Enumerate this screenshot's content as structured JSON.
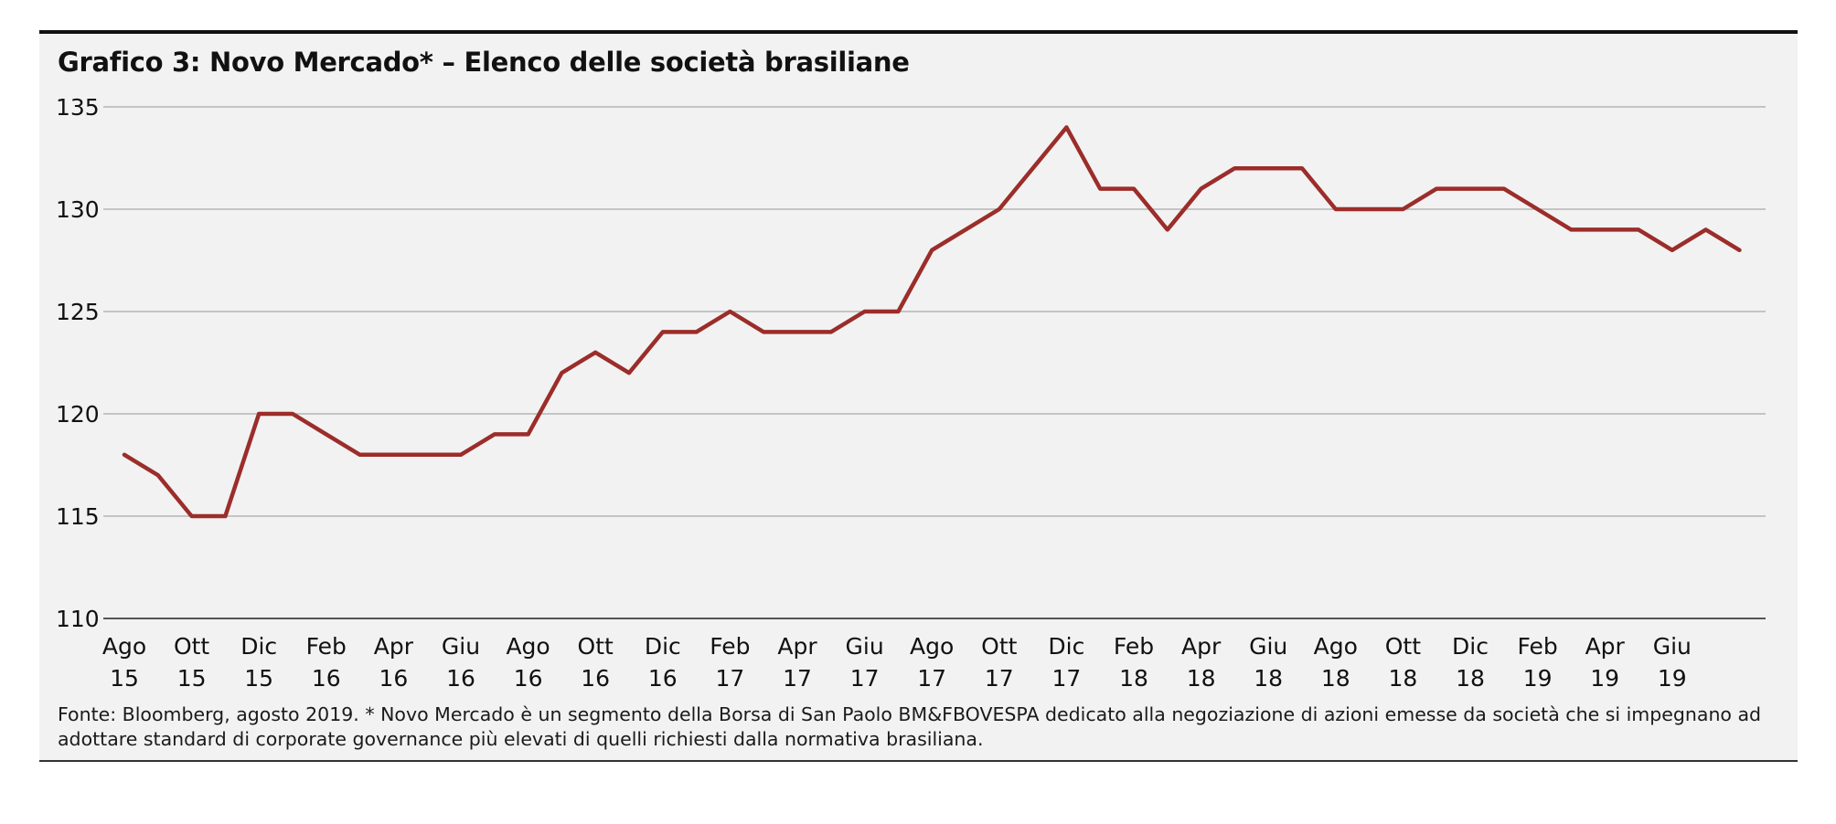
{
  "title": "Grafico 3: Novo Mercado* – Elenco delle società brasiliane",
  "source_lines": [
    "Fonte: Bloomberg, agosto 2019. * Novo Mercado è un segmento della Borsa di San Paolo BM&FBOVESPA dedicato alla negoziazione di azioni emesse da società che si impegnano ad",
    "adottare standard di corporate governance più elevati di quelli richiesti dalla normativa brasiliana."
  ],
  "chart_data": {
    "type": "line",
    "title": "Grafico 3: Novo Mercado* – Elenco delle società brasiliane",
    "xlabel": "",
    "ylabel": "",
    "ylim": [
      110,
      135
    ],
    "yticks": [
      110,
      115,
      120,
      125,
      130,
      135
    ],
    "grid": true,
    "line_color": "#9b2d2a",
    "x_tick_labels": [
      [
        "Ago",
        "15"
      ],
      [
        "Ott",
        "15"
      ],
      [
        "Dic",
        "15"
      ],
      [
        "Feb",
        "16"
      ],
      [
        "Apr",
        "16"
      ],
      [
        "Giu",
        "16"
      ],
      [
        "Ago",
        "16"
      ],
      [
        "Ott",
        "16"
      ],
      [
        "Dic",
        "16"
      ],
      [
        "Feb",
        "17"
      ],
      [
        "Apr",
        "17"
      ],
      [
        "Giu",
        "17"
      ],
      [
        "Ago",
        "17"
      ],
      [
        "Ott",
        "17"
      ],
      [
        "Dic",
        "17"
      ],
      [
        "Feb",
        "18"
      ],
      [
        "Apr",
        "18"
      ],
      [
        "Giu",
        "18"
      ],
      [
        "Ago",
        "18"
      ],
      [
        "Ott",
        "18"
      ],
      [
        "Dic",
        "18"
      ],
      [
        "Feb",
        "19"
      ],
      [
        "Apr",
        "19"
      ],
      [
        "Giu",
        "19"
      ]
    ],
    "x": [
      "2015-08",
      "2015-09",
      "2015-10",
      "2015-11",
      "2015-12",
      "2016-01",
      "2016-02",
      "2016-03",
      "2016-04",
      "2016-05",
      "2016-06",
      "2016-07",
      "2016-08",
      "2016-09",
      "2016-10",
      "2016-11",
      "2016-12",
      "2017-01",
      "2017-02",
      "2017-03",
      "2017-04",
      "2017-05",
      "2017-06",
      "2017-07",
      "2017-08",
      "2017-09",
      "2017-10",
      "2017-11",
      "2017-12",
      "2018-01",
      "2018-02",
      "2018-03",
      "2018-04",
      "2018-05",
      "2018-06",
      "2018-07",
      "2018-08",
      "2018-09",
      "2018-10",
      "2018-11",
      "2018-12",
      "2019-01",
      "2019-02",
      "2019-03",
      "2019-04",
      "2019-05",
      "2019-06",
      "2019-07",
      "2019-08"
    ],
    "series": [
      {
        "values": [
          118,
          117,
          115,
          115,
          120,
          120,
          119,
          118,
          118,
          118,
          118,
          119,
          119,
          122,
          123,
          122,
          124,
          124,
          125,
          124,
          124,
          124,
          125,
          125,
          128,
          129,
          130,
          132,
          134,
          131,
          131,
          129,
          131,
          132,
          132,
          132,
          130,
          130,
          130,
          131,
          131,
          131,
          130,
          129,
          129,
          129,
          128,
          129,
          128
        ]
      }
    ]
  }
}
